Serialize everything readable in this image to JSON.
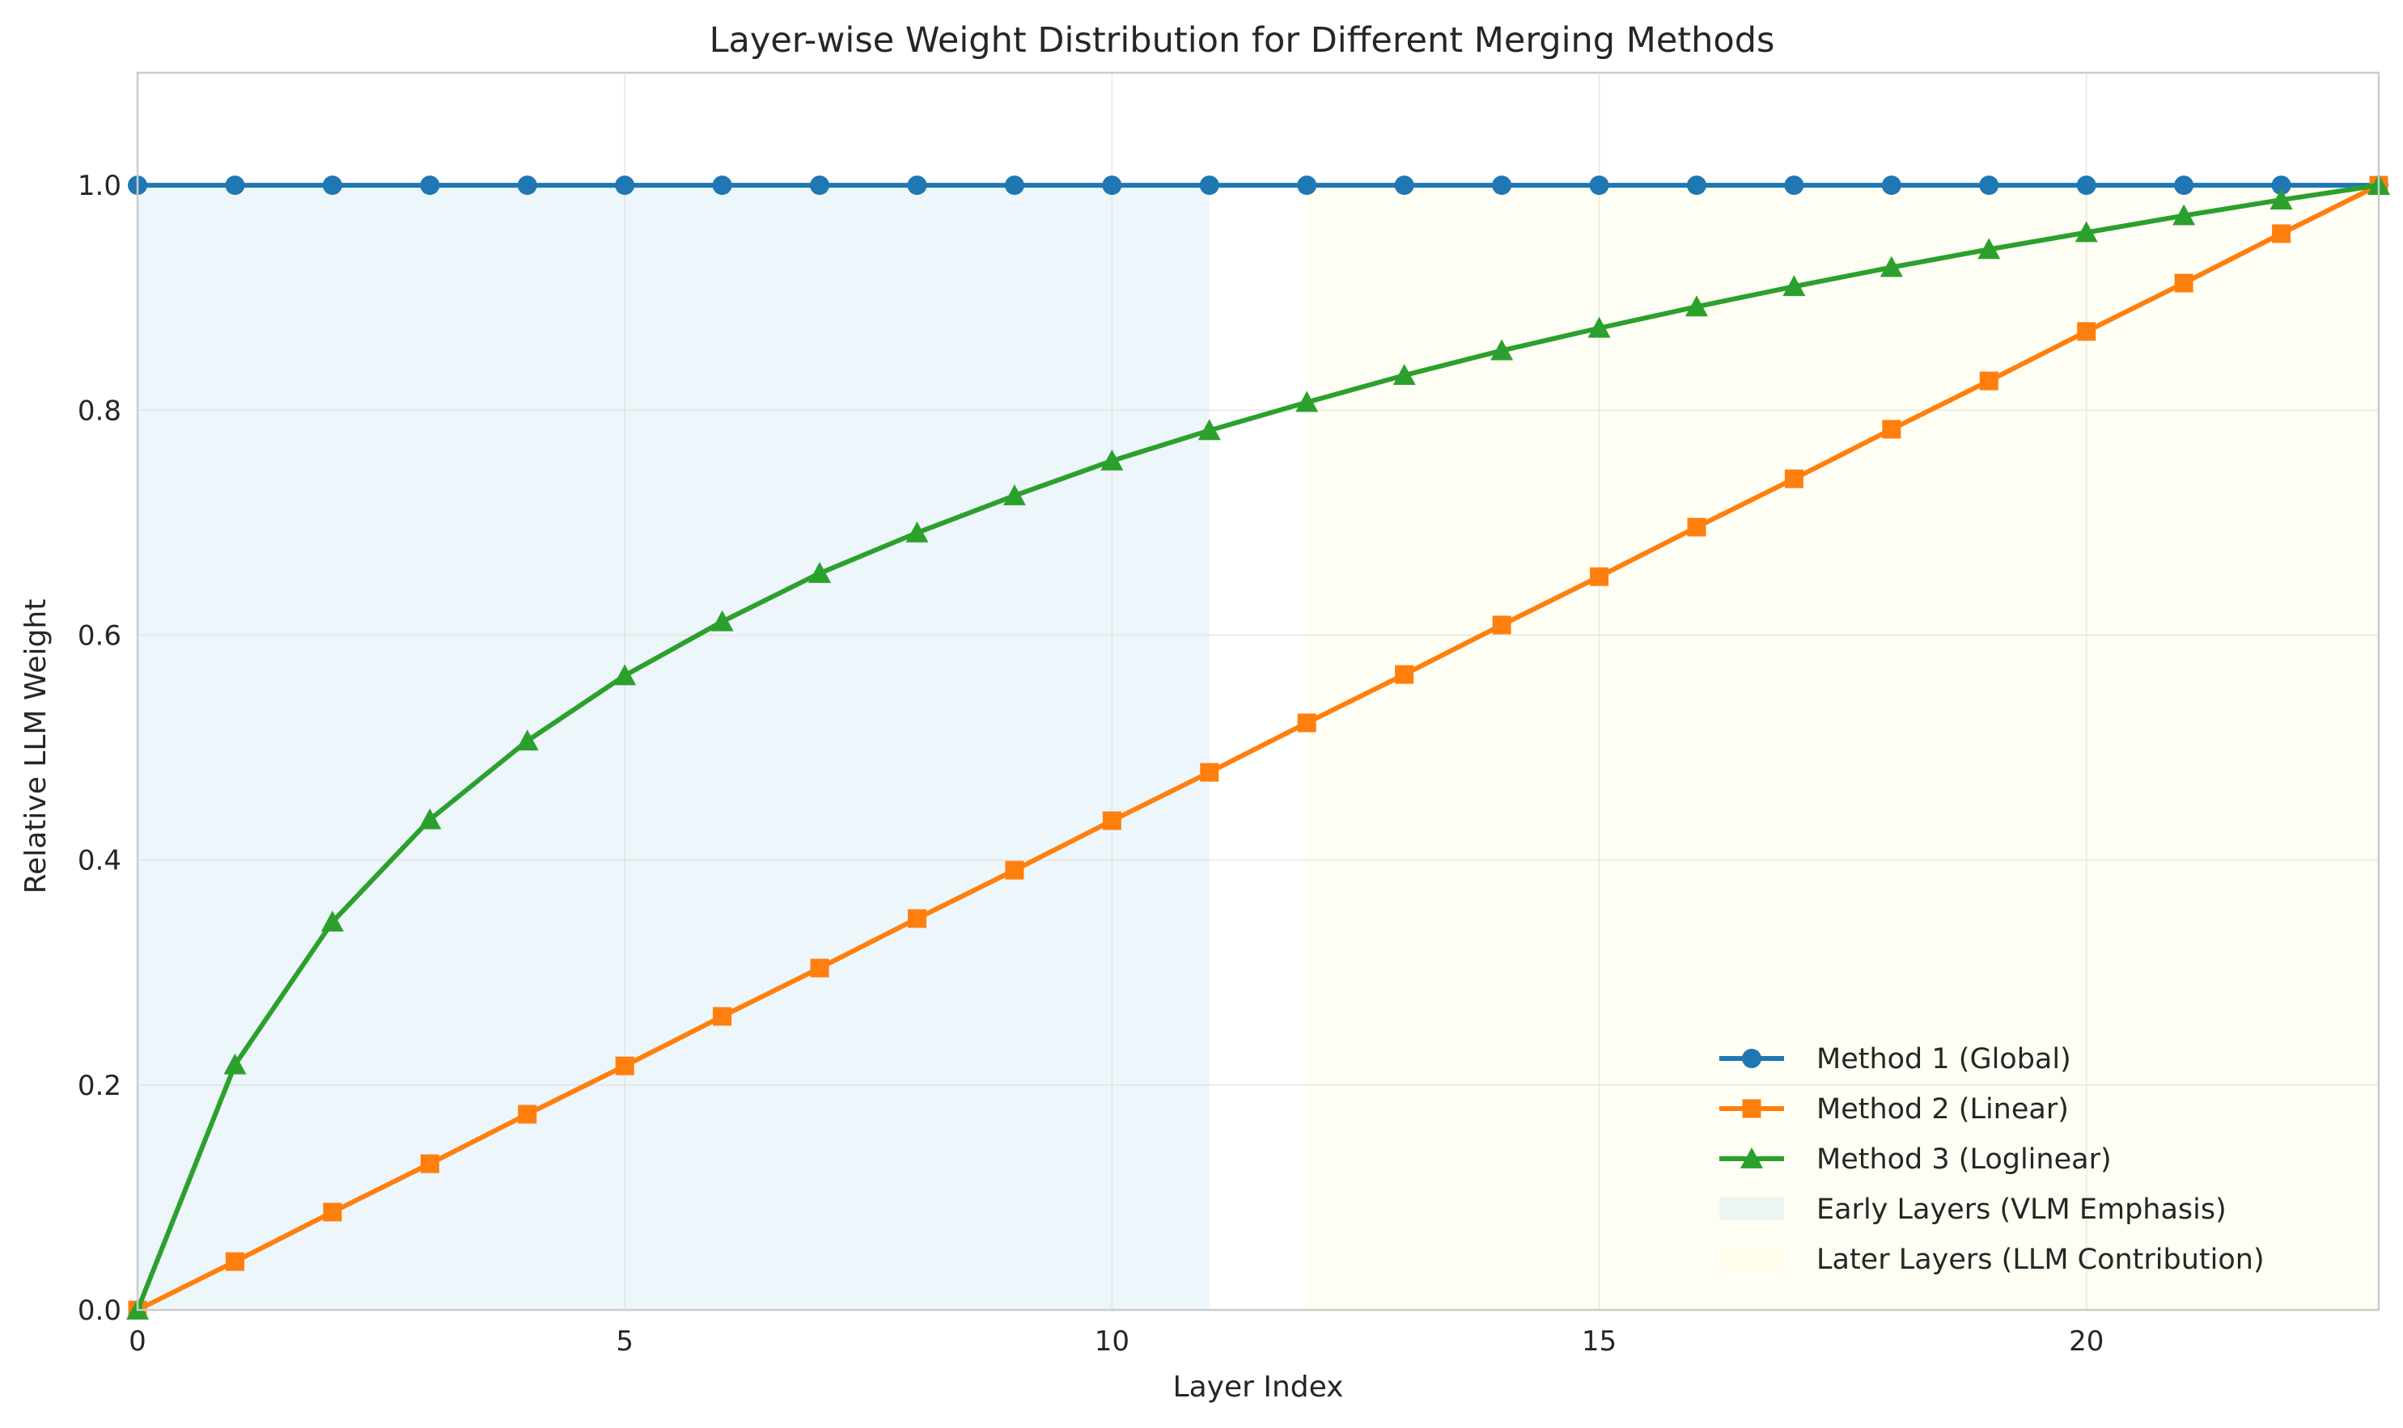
{
  "chart_data": {
    "type": "line",
    "title": "Layer-wise Weight Distribution for Different Merging Methods",
    "xlabel": "Layer Index",
    "ylabel": "Relative LLM Weight",
    "xlim": [
      0,
      23
    ],
    "ylim": [
      0,
      1.1
    ],
    "x_ticks": [
      0,
      5,
      10,
      15,
      20
    ],
    "y_ticks": [
      0.0,
      0.2,
      0.4,
      0.6,
      0.8,
      1.0
    ],
    "grid": true,
    "legend_position": "bottom-right",
    "x": [
      0,
      1,
      2,
      3,
      4,
      5,
      6,
      7,
      8,
      9,
      10,
      11,
      12,
      13,
      14,
      15,
      16,
      17,
      18,
      19,
      20,
      21,
      22,
      23
    ],
    "series": [
      {
        "name": "Method 1 (Global)",
        "color": "#1f77b4",
        "marker": "circle",
        "values": [
          1.0,
          1.0,
          1.0,
          1.0,
          1.0,
          1.0,
          1.0,
          1.0,
          1.0,
          1.0,
          1.0,
          1.0,
          1.0,
          1.0,
          1.0,
          1.0,
          1.0,
          1.0,
          1.0,
          1.0,
          1.0,
          1.0,
          1.0,
          1.0
        ]
      },
      {
        "name": "Method 2 (Linear)",
        "color": "#ff7f0e",
        "marker": "square",
        "values": [
          0.0,
          0.043,
          0.087,
          0.13,
          0.174,
          0.217,
          0.261,
          0.304,
          0.348,
          0.391,
          0.435,
          0.478,
          0.522,
          0.565,
          0.609,
          0.652,
          0.696,
          0.739,
          0.783,
          0.826,
          0.87,
          0.913,
          0.957,
          1.0
        ]
      },
      {
        "name": "Method 3 (Loglinear)",
        "color": "#2ca02c",
        "marker": "triangle",
        "values": [
          0.0,
          0.218,
          0.345,
          0.436,
          0.506,
          0.564,
          0.612,
          0.655,
          0.691,
          0.724,
          0.755,
          0.782,
          0.807,
          0.831,
          0.853,
          0.873,
          0.892,
          0.91,
          0.927,
          0.943,
          0.958,
          0.973,
          0.987,
          1.0
        ]
      }
    ],
    "shaded_regions": [
      {
        "name": "Early Layers (VLM Emphasis)",
        "x_range": [
          0,
          11
        ],
        "y_range": [
          0,
          1.0
        ],
        "color": "#add8e6",
        "opacity": 0.22
      },
      {
        "name": "Later Layers (LLM Contribution)",
        "x_range": [
          12,
          23
        ],
        "y_range": [
          0,
          1.0
        ],
        "color": "#fffacd",
        "opacity": 0.22
      }
    ]
  }
}
